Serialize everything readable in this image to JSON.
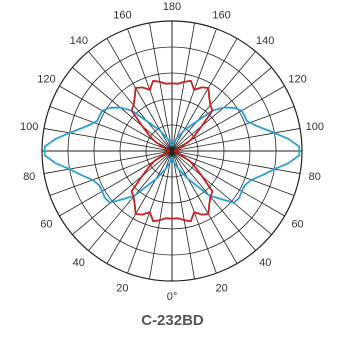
{
  "chart_data": {
    "type": "polar",
    "title": "C-232BD",
    "angle_tick_labels": {
      "top": "180",
      "bottom": "0°",
      "sides": [
        "20",
        "40",
        "60",
        "80",
        "100",
        "120",
        "140",
        "160"
      ]
    },
    "angle_tick_values": [
      0,
      20,
      40,
      60,
      80,
      100,
      120,
      140,
      160,
      180
    ],
    "radial_rings": 5,
    "grid": true,
    "colors": {
      "blue": "#2a9fd6",
      "red": "#c8201e",
      "grid": "#222222"
    },
    "series": [
      {
        "color": "#2a9fd6",
        "angles": [
          0,
          10,
          20,
          30,
          40,
          50,
          55,
          60,
          65,
          70,
          75,
          80,
          84,
          88,
          92,
          96,
          100,
          104,
          108,
          112,
          116,
          120,
          125,
          130,
          135,
          140,
          150,
          160,
          170,
          180
        ],
        "values": [
          0.05,
          0.09,
          0.15,
          0.25,
          0.45,
          0.62,
          0.63,
          0.62,
          0.62,
          0.65,
          0.72,
          0.8,
          0.9,
          0.98,
          0.98,
          0.9,
          0.8,
          0.72,
          0.66,
          0.62,
          0.62,
          0.62,
          0.58,
          0.52,
          0.44,
          0.3,
          0.18,
          0.1,
          0.06,
          0.04
        ]
      },
      {
        "color": "#c8201e",
        "angles": [
          0,
          5,
          10,
          15,
          20,
          25,
          30,
          35,
          40,
          45,
          50,
          55,
          60,
          70,
          80,
          90,
          100,
          110,
          120,
          125,
          130,
          135,
          140,
          145,
          150,
          155,
          160,
          165,
          170,
          175,
          180
        ],
        "values": [
          0.52,
          0.52,
          0.54,
          0.56,
          0.5,
          0.54,
          0.56,
          0.5,
          0.46,
          0.44,
          0.3,
          0.22,
          0.16,
          0.06,
          0.03,
          0.02,
          0.03,
          0.06,
          0.16,
          0.22,
          0.3,
          0.44,
          0.46,
          0.5,
          0.56,
          0.54,
          0.5,
          0.56,
          0.54,
          0.52,
          0.52
        ]
      }
    ]
  }
}
